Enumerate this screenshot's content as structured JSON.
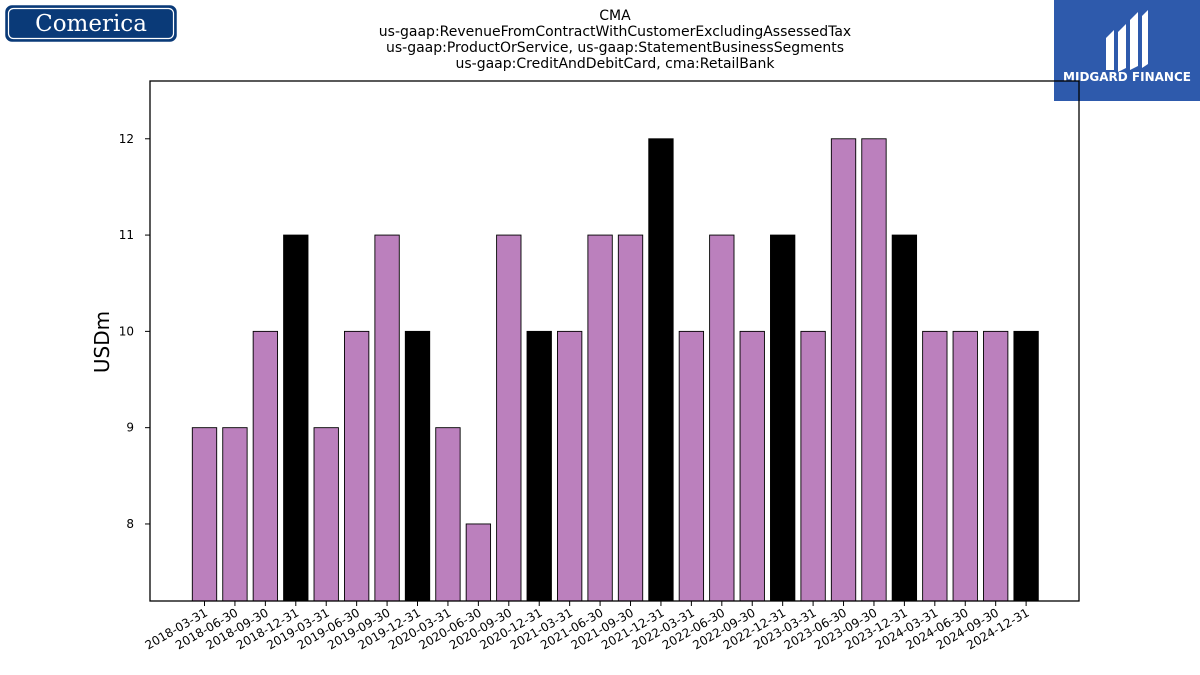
{
  "logos": {
    "left": {
      "text": "Comerica",
      "bg_color": "#0a3a78",
      "border_color": "#ffffff"
    },
    "right": {
      "text": "MIDGARD FINANCE",
      "bg_color": "#2e5aac",
      "text_color": "#ffffff"
    }
  },
  "chart_data": {
    "type": "bar",
    "title_lines": [
      "CMA",
      "us-gaap:RevenueFromContractWithCustomerExcludingAssessedTax",
      "us-gaap:ProductOrService, us-gaap:StatementBusinessSegments",
      "us-gaap:CreditAndDebitCard, cma:RetailBank"
    ],
    "ylabel": "USDm",
    "xlabel": "",
    "ylim": [
      7.2,
      12.6
    ],
    "yticks": [
      8,
      9,
      10,
      11,
      12
    ],
    "grid": false,
    "bar_color": "#bb80bd",
    "highlight_color": "#000000",
    "categories": [
      "2018-03-31",
      "2018-06-30",
      "2018-09-30",
      "2018-12-31",
      "2019-03-31",
      "2019-06-30",
      "2019-09-30",
      "2019-12-31",
      "2020-03-31",
      "2020-06-30",
      "2020-09-30",
      "2020-12-31",
      "2021-03-31",
      "2021-06-30",
      "2021-09-30",
      "2021-12-31",
      "2022-03-31",
      "2022-06-30",
      "2022-09-30",
      "2022-12-31",
      "2023-03-31",
      "2023-06-30",
      "2023-09-30",
      "2023-12-31",
      "2024-03-31",
      "2024-06-30",
      "2024-09-30",
      "2024-12-31"
    ],
    "values": [
      9,
      9,
      10,
      11,
      9,
      10,
      11,
      10,
      9,
      8,
      11,
      10,
      10,
      11,
      11,
      12,
      10,
      11,
      10,
      11,
      10,
      12,
      12,
      11,
      10,
      10,
      10,
      10
    ],
    "highlighted": [
      false,
      false,
      false,
      true,
      false,
      false,
      false,
      true,
      false,
      false,
      false,
      true,
      false,
      false,
      false,
      true,
      false,
      false,
      false,
      true,
      false,
      false,
      false,
      true,
      false,
      false,
      false,
      true
    ]
  }
}
